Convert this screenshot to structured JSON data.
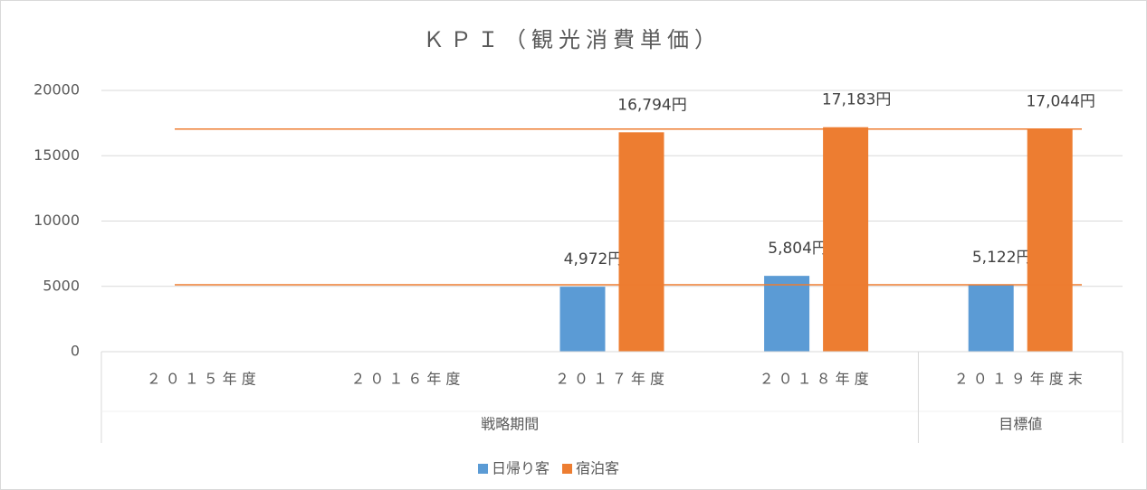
{
  "chart_data": {
    "type": "bar",
    "title": "ＫＰＩ（観光消費単価）",
    "categories": [
      "２０１５年度",
      "２０１６年度",
      "２０１７年度",
      "２０１８年度",
      "２０１９年度末"
    ],
    "groups": [
      {
        "label": "戦略期間",
        "span": 4
      },
      {
        "label": "目標値",
        "span": 1
      }
    ],
    "series": [
      {
        "name": "日帰り客",
        "color": "#5b9bd5",
        "values": [
          null,
          null,
          4972,
          5804,
          5122
        ],
        "value_labels": [
          null,
          null,
          "4,972円",
          "5,804円",
          "5,122円"
        ]
      },
      {
        "name": "宿泊客",
        "color": "#ed7d31",
        "values": [
          null,
          null,
          16794,
          17183,
          17044
        ],
        "value_labels": [
          null,
          null,
          "16,794円",
          "17,183円",
          "17,044円"
        ]
      }
    ],
    "reference_lines": {
      "color": "#ed7d31",
      "values": [
        5122,
        17044
      ]
    },
    "ylim": [
      0,
      20000
    ],
    "yticks": [
      0,
      5000,
      10000,
      15000,
      20000
    ],
    "grid": true,
    "legend": "bottom"
  }
}
